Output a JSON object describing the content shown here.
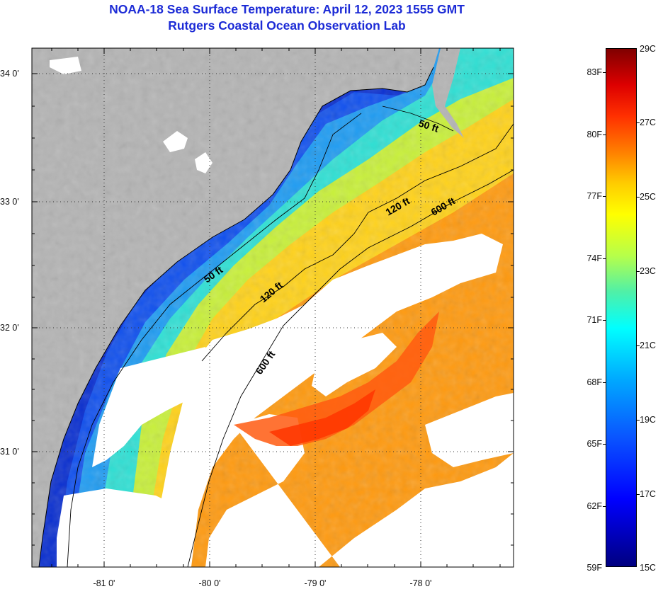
{
  "title": "NOAA-18 Sea Surface Temperature:  April 12, 2023 1555 GMT",
  "subtitle": "Rutgers Coastal Ocean Observation Lab",
  "map": {
    "lat_labels": [
      {
        "lat": 34,
        "text": "34 0'"
      },
      {
        "lat": 33,
        "text": "33 0'"
      },
      {
        "lat": 32,
        "text": "32 0'"
      },
      {
        "lat": 31,
        "text": "31 0'"
      }
    ],
    "lon_labels": [
      {
        "lon": -81,
        "text": "-81 0'"
      },
      {
        "lon": -80,
        "text": "-80 0'"
      },
      {
        "lon": -79,
        "text": "-79 0'"
      },
      {
        "lon": -78,
        "text": "-78 0'"
      }
    ],
    "contour_labels": [
      "50 ft",
      "50 ft",
      "120 ft",
      "120 ft",
      "600 ft",
      "600 ft"
    ],
    "colors": {
      "land": "#b4b4b4",
      "cloud": "#ffffff"
    }
  },
  "colorbar": {
    "fahrenheit": [
      "83F",
      "80F",
      "77F",
      "74F",
      "71F",
      "68F",
      "65F",
      "62F",
      "59F"
    ],
    "celsius": [
      "29C",
      "27C",
      "25C",
      "23C",
      "21C",
      "19C",
      "17C",
      "15C"
    ],
    "range_c": [
      15,
      29
    ]
  }
}
